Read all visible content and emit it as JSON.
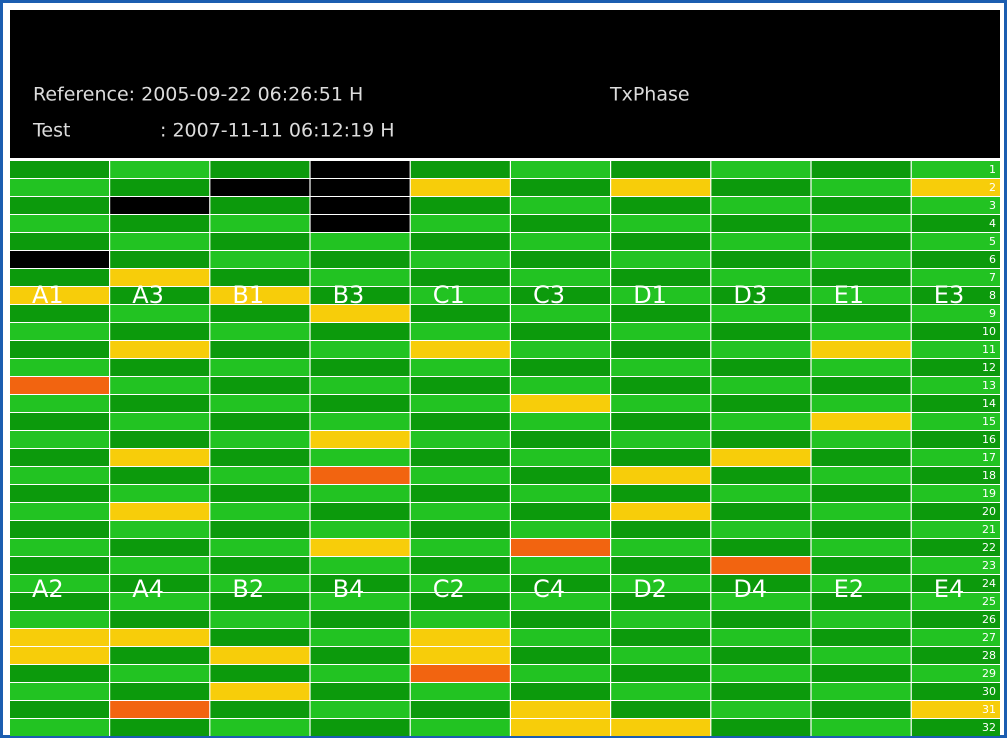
{
  "header": {
    "reference": "Reference: 2005-09-22 06:26:51 H",
    "mode": "TxPhase",
    "test_label": "Test",
    "test_value": ": 2007-11-11 06:12:19 H"
  },
  "grid": {
    "top_labels": [
      "A1",
      "A3",
      "B1",
      "B3",
      "C1",
      "C3",
      "D1",
      "D3",
      "E1",
      "E3"
    ],
    "bottom_labels": [
      "A2",
      "A4",
      "B2",
      "B4",
      "C2",
      "C4",
      "D2",
      "D4",
      "E2",
      "E4"
    ],
    "row_numbers": [
      1,
      2,
      3,
      4,
      5,
      6,
      7,
      8,
      9,
      10,
      11,
      12,
      13,
      14,
      15,
      16,
      17,
      18,
      19,
      20,
      21,
      22,
      23,
      24,
      25,
      26,
      27,
      28,
      29,
      30,
      31,
      32
    ],
    "palette": {
      "g": "#0c9a0c",
      "l": "#22c322",
      "y": "#f7cd0a",
      "o": "#f26410",
      "k": "#000000"
    },
    "cells": [
      "glglgkgyglglolglglglglglglyyglgl",
      "lgkglgyglgyglglgyglylglglgyglgog",
      "gkglglgyglglglglglglglglglgygygl",
      "kkkklglgyglglglylolglylglglglglg",
      "gyglglglglylglglglglglglglyyolgl",
      "lglglglglglglylglglglolglglglgyy",
      "gyglglglglglglglgygyglglglglglgy",
      "lglglglglglglglgyglglgoglglglglg",
      "glglglglglylglylglglglglglglglgl",
      "lylglglglglglglglglglglglglglgyg"
    ]
  }
}
